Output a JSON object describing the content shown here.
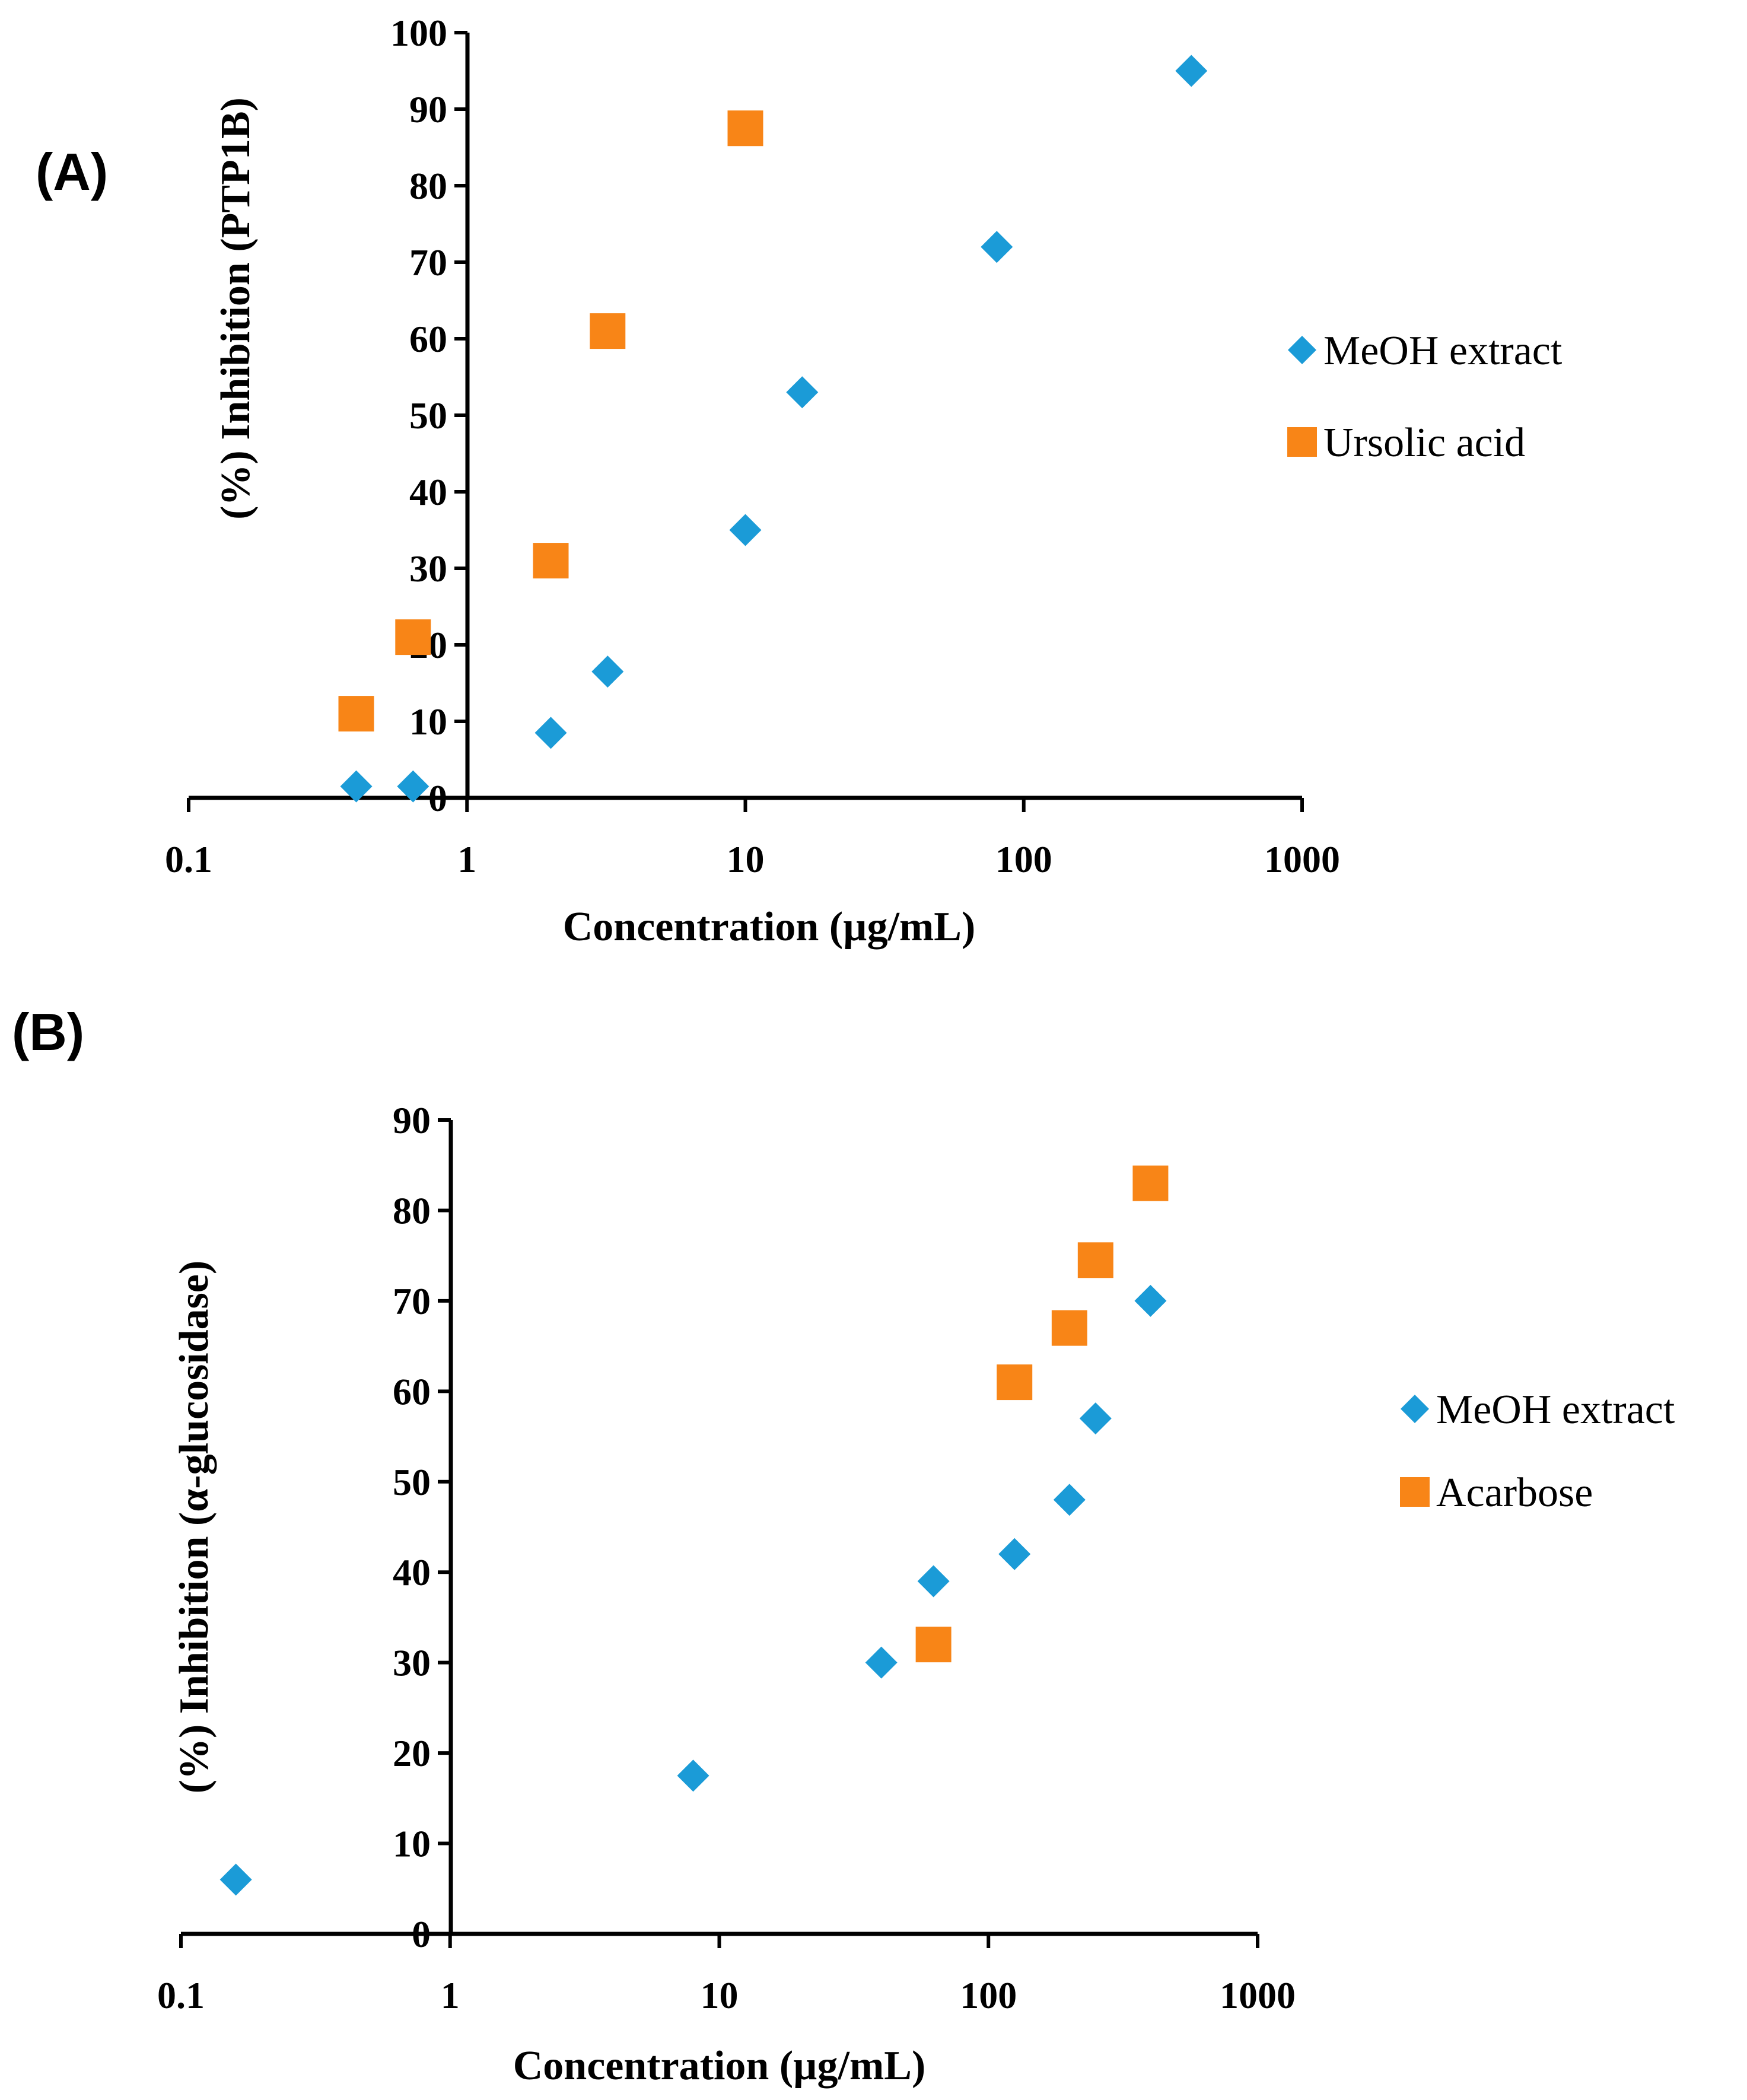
{
  "colors": {
    "series_diamond": "#1B9BD7",
    "series_square": "#F88517",
    "axis": "#000000"
  },
  "chart_data": [
    {
      "panel_label": "(A)",
      "type": "scatter",
      "xscale": "log",
      "xlim": [
        0.1,
        1000
      ],
      "ylim": [
        0,
        100
      ],
      "xlabel": "Concentration (µg/mL)",
      "ylabel": "(%) Inhibition (PTP1B)",
      "xticks": [
        "0.1",
        "1",
        "10",
        "100",
        "1000"
      ],
      "yticks": [
        "0",
        "10",
        "20",
        "30",
        "40",
        "50",
        "60",
        "70",
        "80",
        "90",
        "100"
      ],
      "legend_position": "right",
      "series": [
        {
          "name": "MeOH extract",
          "marker": "diamond",
          "x": [
            0.4,
            0.64,
            2.0,
            3.2,
            10,
            16,
            80,
            400
          ],
          "y": [
            1.5,
            1.5,
            8.5,
            16.5,
            35,
            53,
            72,
            95
          ]
        },
        {
          "name": "Ursolic acid",
          "marker": "square",
          "x": [
            0.4,
            0.64,
            2.0,
            3.2,
            10
          ],
          "y": [
            11,
            21,
            31,
            61,
            87.5
          ]
        }
      ]
    },
    {
      "panel_label": "(B)",
      "type": "scatter",
      "xscale": "log",
      "xlim": [
        0.1,
        1000
      ],
      "ylim": [
        0,
        90
      ],
      "xlabel": "Concentration (µg/mL)",
      "ylabel": "(%) Inhibition (α-glucosidase)",
      "xticks": [
        "0.1",
        "1",
        "10",
        "100",
        "1000"
      ],
      "yticks": [
        "0",
        "10",
        "20",
        "30",
        "40",
        "50",
        "60",
        "70",
        "80",
        "90"
      ],
      "legend_position": "right",
      "series": [
        {
          "name": "MeOH extract",
          "marker": "diamond",
          "x": [
            0.16,
            8,
            40,
            62.5,
            125,
            200,
            250,
            400
          ],
          "y": [
            6,
            17.5,
            30,
            39,
            42,
            48,
            57,
            70
          ]
        },
        {
          "name": "Acarbose",
          "marker": "square",
          "x": [
            62.5,
            125,
            200,
            250,
            400
          ],
          "y": [
            32,
            61,
            67,
            74.5,
            83
          ]
        }
      ]
    }
  ]
}
